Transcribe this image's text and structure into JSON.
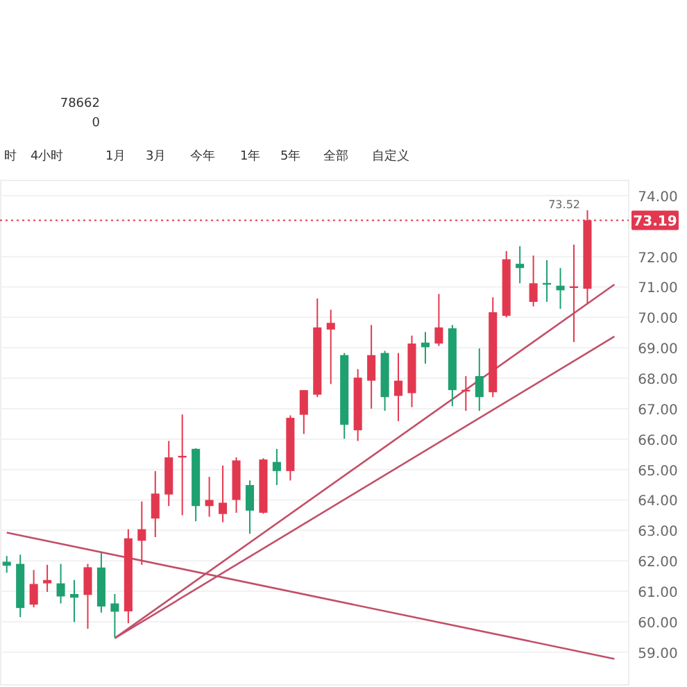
{
  "chart_data": {
    "type": "candlestick",
    "categories": [
      null,
      null,
      null,
      null,
      null,
      null,
      null,
      null,
      null,
      null,
      null,
      null,
      null,
      null,
      null,
      null,
      null,
      null,
      null,
      null,
      null,
      null,
      null,
      null,
      null,
      null,
      null,
      null,
      null,
      null,
      null,
      null,
      null,
      null,
      null,
      null,
      null,
      null,
      null,
      null,
      null,
      null,
      null,
      null,
      null,
      null
    ],
    "ohlc": [
      [
        61.97,
        62.16,
        61.61,
        61.84
      ],
      [
        61.9,
        62.2,
        60.15,
        60.45
      ],
      [
        60.56,
        61.7,
        60.47,
        61.24
      ],
      [
        61.26,
        61.87,
        60.98,
        61.37
      ],
      [
        61.26,
        61.9,
        60.6,
        60.83
      ],
      [
        60.91,
        61.37,
        59.99,
        60.79
      ],
      [
        60.88,
        61.9,
        59.77,
        61.79
      ],
      [
        61.78,
        62.28,
        60.3,
        60.5
      ],
      [
        60.6,
        60.91,
        59.49,
        60.33
      ],
      [
        60.34,
        63.04,
        59.95,
        62.74
      ],
      [
        62.66,
        63.95,
        61.87,
        63.04
      ],
      [
        63.39,
        64.95,
        62.78,
        64.21
      ],
      [
        64.18,
        65.94,
        63.8,
        65.4
      ],
      [
        65.4,
        66.81,
        63.5,
        65.45
      ],
      [
        65.68,
        65.7,
        63.3,
        63.8
      ],
      [
        63.8,
        64.76,
        63.45,
        64.0
      ],
      [
        63.54,
        65.13,
        63.27,
        63.91
      ],
      [
        64.0,
        65.4,
        63.58,
        65.3
      ],
      [
        64.49,
        64.64,
        62.89,
        63.65
      ],
      [
        63.58,
        65.37,
        63.55,
        65.33
      ],
      [
        65.25,
        65.68,
        64.49,
        64.95
      ],
      [
        64.95,
        66.78,
        64.64,
        66.7
      ],
      [
        66.8,
        67.61,
        66.17,
        67.61
      ],
      [
        67.46,
        70.62,
        67.38,
        69.67
      ],
      [
        69.6,
        70.25,
        67.81,
        69.82
      ],
      [
        68.76,
        68.83,
        66.01,
        66.47
      ],
      [
        66.29,
        68.3,
        65.94,
        68.02
      ],
      [
        67.92,
        69.75,
        67.0,
        68.76
      ],
      [
        68.83,
        68.9,
        66.93,
        67.38
      ],
      [
        67.42,
        68.83,
        66.59,
        67.92
      ],
      [
        67.51,
        69.4,
        67.05,
        69.14
      ],
      [
        69.17,
        69.52,
        68.48,
        69.02
      ],
      [
        69.14,
        70.77,
        69.06,
        69.67
      ],
      [
        69.64,
        69.75,
        67.08,
        67.61
      ],
      [
        67.6,
        68.07,
        66.93,
        67.62
      ],
      [
        68.07,
        68.98,
        66.93,
        67.38
      ],
      [
        67.54,
        70.66,
        67.38,
        70.17
      ],
      [
        70.05,
        72.18,
        70.0,
        71.91
      ],
      [
        71.76,
        72.34,
        71.12,
        71.62
      ],
      [
        70.51,
        72.03,
        70.36,
        71.12
      ],
      [
        71.13,
        71.88,
        70.51,
        71.1
      ],
      [
        71.04,
        71.62,
        70.28,
        70.89
      ],
      [
        71.0,
        72.39,
        69.19,
        71.02
      ],
      [
        70.94,
        73.52,
        70.43,
        73.19
      ],
      null,
      null
    ],
    "colors": [
      "#1fa070",
      "#1fa070",
      "#e2384f",
      "#e2384f",
      "#1fa070",
      "#1fa070",
      "#e2384f",
      "#1fa070",
      "#1fa070",
      "#e2384f",
      "#e2384f",
      "#e2384f",
      "#e2384f",
      "#e2384f",
      "#1fa070",
      "#e2384f",
      "#e2384f",
      "#e2384f",
      "#1fa070",
      "#e2384f",
      "#1fa070",
      "#e2384f",
      "#e2384f",
      "#e2384f",
      "#e2384f",
      "#1fa070",
      "#e2384f",
      "#e2384f",
      "#1fa070",
      "#e2384f",
      "#e2384f",
      "#1fa070",
      "#e2384f",
      "#1fa070",
      "#e2384f",
      "#1fa070",
      "#e2384f",
      "#e2384f",
      "#1fa070",
      "#e2384f",
      "#1fa070",
      "#1fa070",
      "#e2384f",
      "#e2384f",
      null,
      null
    ],
    "series": [
      {
        "type": "line",
        "color": "#c24f68",
        "values": [
          62.93,
          null,
          null,
          null,
          null,
          null,
          null,
          null,
          null,
          null,
          null,
          null,
          null,
          null,
          null,
          null,
          null,
          null,
          null,
          null,
          null,
          null,
          null,
          null,
          null,
          null,
          null,
          null,
          null,
          null,
          null,
          null,
          null,
          null,
          null,
          null,
          null,
          null,
          null,
          null,
          null,
          null,
          null,
          null,
          null,
          58.78
        ]
      },
      {
        "type": "line",
        "color": "#c24f68",
        "values": [
          null,
          null,
          null,
          null,
          null,
          null,
          null,
          null,
          59.46,
          null,
          null,
          null,
          null,
          null,
          null,
          null,
          null,
          null,
          null,
          null,
          null,
          null,
          null,
          null,
          null,
          null,
          null,
          null,
          null,
          null,
          null,
          null,
          null,
          null,
          null,
          null,
          null,
          null,
          null,
          null,
          null,
          null,
          null,
          null,
          null,
          71.08
        ]
      },
      {
        "type": "line",
        "color": "#c24f68",
        "values": [
          null,
          null,
          null,
          null,
          null,
          null,
          null,
          null,
          59.46,
          null,
          null,
          null,
          null,
          null,
          null,
          null,
          null,
          null,
          null,
          null,
          null,
          null,
          null,
          null,
          null,
          null,
          null,
          null,
          null,
          null,
          null,
          null,
          null,
          null,
          null,
          null,
          null,
          null,
          null,
          null,
          null,
          null,
          null,
          null,
          null,
          69.37
        ]
      }
    ],
    "ylim": [
      57.9,
      74.5
    ],
    "yticks": [
      {
        "value": 59,
        "label": "59.00"
      },
      {
        "value": 60,
        "label": "60.00"
      },
      {
        "value": 61,
        "label": "61.00"
      },
      {
        "value": 62,
        "label": "62.00"
      },
      {
        "value": 63,
        "label": "63.00"
      },
      {
        "value": 64,
        "label": "64.00"
      },
      {
        "value": 65,
        "label": "65.00"
      },
      {
        "value": 66,
        "label": "66.00"
      },
      {
        "value": 67,
        "label": "67.00"
      },
      {
        "value": 68,
        "label": "68.00"
      },
      {
        "value": 69,
        "label": "69.00"
      },
      {
        "value": 70,
        "label": "70.00"
      },
      {
        "value": 71,
        "label": "71.00"
      },
      {
        "value": 72,
        "label": "72.00"
      },
      {
        "value": 74,
        "label": "74.00"
      }
    ],
    "grid": "y",
    "ref_lines": [
      {
        "axis": "y",
        "value": 73.19,
        "label": "73.19",
        "color": "#e2384f",
        "line_style": "dotted"
      }
    ],
    "annotations": [
      "78662",
      "0",
      "时",
      "4小时",
      "1月",
      "3月",
      "今年",
      "1年",
      "5年",
      "全部",
      "自定义",
      "73.52"
    ]
  }
}
